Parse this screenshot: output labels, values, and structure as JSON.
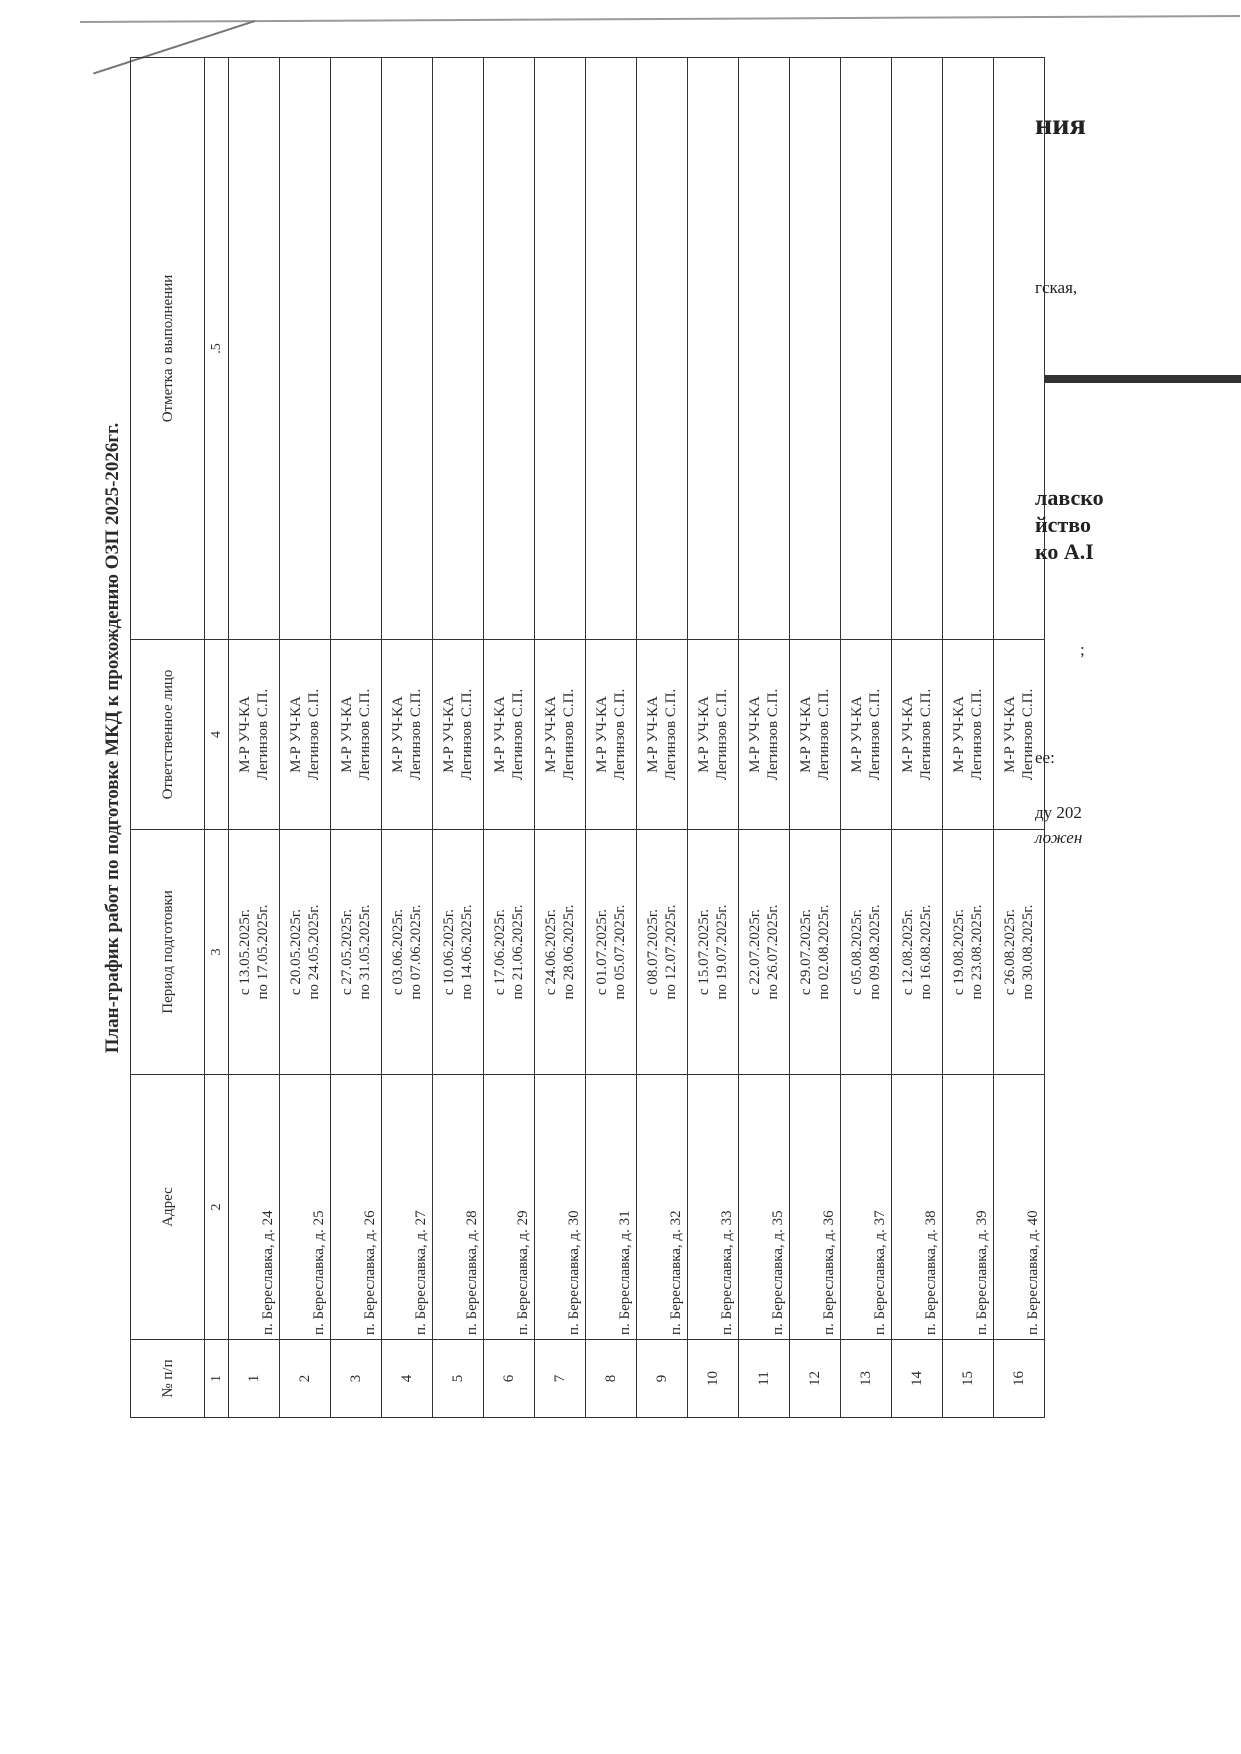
{
  "title": "План-график работ по  подготовке МКД к прохождению ОЗП 2025-2026гг.",
  "columns": [
    "№ п/п",
    "Адрес",
    "Период подготовки",
    "Ответственное лицо",
    "Отметка о выполнении"
  ],
  "column_numbers": [
    "1",
    "2",
    "3",
    "4",
    ".5"
  ],
  "rows": [
    {
      "n": "1",
      "address": "п. Береславка, д. 24",
      "from": "с 13.05.2025г.",
      "to": "по 17.05.2025г.",
      "role": "М-Р УЧ-КА",
      "person": "Легинзов С.П.",
      "mark": ""
    },
    {
      "n": "2",
      "address": "п. Береславка, д. 25",
      "from": "с 20.05.2025г.",
      "to": "по 24.05.2025г.",
      "role": "М-Р УЧ-КА",
      "person": "Легинзов С.П.",
      "mark": ""
    },
    {
      "n": "3",
      "address": "п. Береславка, д. 26",
      "from": "с 27.05.2025г.",
      "to": "по 31.05.2025г.",
      "role": "М-Р УЧ-КА",
      "person": "Легинзов С.П.",
      "mark": ""
    },
    {
      "n": "4",
      "address": "п. Береславка, д. 27",
      "from": "с 03.06.2025г.",
      "to": "по 07.06.2025г.",
      "role": "М-Р УЧ-КА",
      "person": "Легинзов С.П.",
      "mark": ""
    },
    {
      "n": "5",
      "address": "п. Береславка, д. 28",
      "from": "с 10.06.2025г.",
      "to": "по 14.06.2025г.",
      "role": "М-Р УЧ-КА",
      "person": "Легинзов С.П.",
      "mark": ""
    },
    {
      "n": "6",
      "address": "п. Береславка, д. 29",
      "from": "с 17.06.2025г.",
      "to": "по 21.06.2025г.",
      "role": "М-Р УЧ-КА",
      "person": "Легинзов С.П.",
      "mark": ""
    },
    {
      "n": "7",
      "address": "п. Береславка, д. 30",
      "from": "с 24.06.2025г.",
      "to": "по 28.06.2025г.",
      "role": "М-Р УЧ-КА",
      "person": "Легинзов С.П.",
      "mark": ""
    },
    {
      "n": "8",
      "address": "п. Береславка, д. 31",
      "from": "с 01.07.2025г.",
      "to": "по 05.07.2025г.",
      "role": "М-Р УЧ-КА",
      "person": "Легинзов С.П.",
      "mark": ""
    },
    {
      "n": "9",
      "address": "п. Береславка, д. 32",
      "from": "с 08.07.2025г.",
      "to": "по 12.07.2025г.",
      "role": "М-Р УЧ-КА",
      "person": "Легинзов С.П.",
      "mark": ""
    },
    {
      "n": "10",
      "address": "п. Береславка, д. 33",
      "from": "с 15.07.2025г.",
      "to": "по 19.07.2025г.",
      "role": "М-Р УЧ-КА",
      "person": "Легинзов С.П.",
      "mark": ""
    },
    {
      "n": "11",
      "address": "п. Береславка, д. 35",
      "from": "с 22.07.2025г.",
      "to": "по 26.07.2025г.",
      "role": "М-Р УЧ-КА",
      "person": "Легинзов С.П.",
      "mark": ""
    },
    {
      "n": "12",
      "address": "п. Береславка, д. 36",
      "from": "с 29.07.2025г.",
      "to": "по 02.08.2025г.",
      "role": "М-Р УЧ-КА",
      "person": "Легинзов С.П.",
      "mark": ""
    },
    {
      "n": "13",
      "address": "п. Береславка, д. 37",
      "from": "с 05.08.2025г.",
      "to": "по 09.08.2025г.",
      "role": "М-Р УЧ-КА",
      "person": "Легинзов С.П.",
      "mark": ""
    },
    {
      "n": "14",
      "address": "п. Береславка, д. 38",
      "from": "с 12.08.2025г.",
      "to": "по 16.08.2025г.",
      "role": "М-Р УЧ-КА",
      "person": "Легинзов С.П.",
      "mark": ""
    },
    {
      "n": "15",
      "address": "п. Береславка, д. 39",
      "from": "с 19.08.2025г.",
      "to": "по 23.08.2025г.",
      "role": "М-Р УЧ-КА",
      "person": "Легинзов С.П.",
      "mark": ""
    },
    {
      "n": "16",
      "address": "п. Береславка, д. 40",
      "from": "с 26.08.2025г.",
      "to": "по 30.08.2025г.",
      "role": "М-Р УЧ-КА",
      "person": "Легинзов С.П.",
      "mark": ""
    }
  ],
  "underlying_page_fragments": [
    "ния",
    "гская,",
    "лавско",
    "йство",
    "ко А.I",
    ";",
    "ее:",
    "ду  202",
    "ложен"
  ]
}
